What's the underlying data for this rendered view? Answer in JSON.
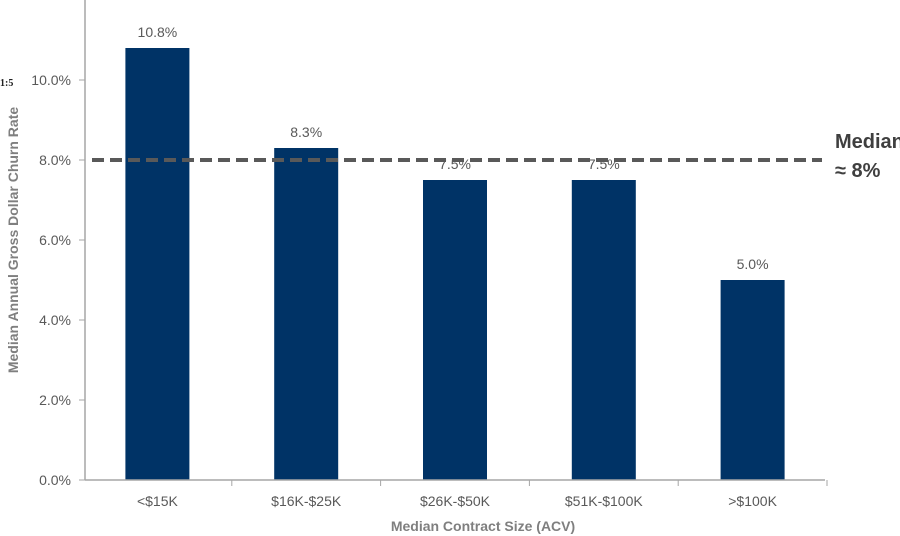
{
  "colors": {
    "bar": "#003366",
    "median_line": "#595959",
    "axis": "#a6a6a6"
  },
  "stray_mark": "1:5",
  "median_label": {
    "line1": "Median",
    "line2": "≈ 8%"
  },
  "chart_data": {
    "type": "bar",
    "title": "",
    "xlabel": "Median Contract Size (ACV)",
    "ylabel": "Median Annual Gross Dollar Churn Rate",
    "categories": [
      "<$15K",
      "$16K-$25K",
      "$26K-$50K",
      "$51K-$100K",
      ">$100K"
    ],
    "values": [
      10.8,
      8.3,
      7.5,
      7.5,
      5.0
    ],
    "data_labels": [
      "10.8%",
      "8.3%",
      "7.5%",
      "7.5%",
      "5.0%"
    ],
    "ylim": [
      0,
      12
    ],
    "yticks": [
      0,
      2,
      4,
      6,
      8,
      10
    ],
    "ytick_labels": [
      "0.0%",
      "2.0%",
      "4.0%",
      "6.0%",
      "8.0%",
      "10.0%"
    ],
    "median_value": 8.0,
    "grid": false,
    "legend": "none"
  }
}
